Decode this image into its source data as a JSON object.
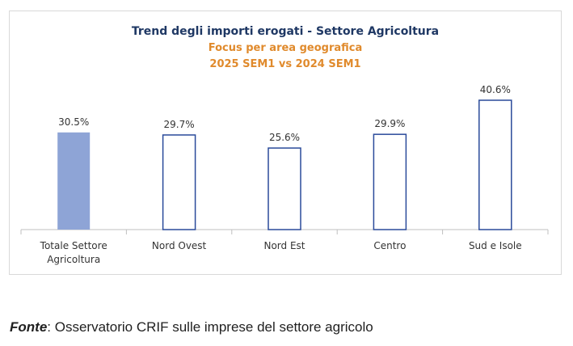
{
  "chart_data": {
    "type": "bar",
    "title": "Trend degli importi erogati - Settore Agricoltura",
    "subtitle": [
      "Focus per area geografica",
      "2025 SEM1 vs 2024 SEM1"
    ],
    "categories": [
      [
        "Totale Settore",
        "Agricoltura"
      ],
      [
        "Nord Ovest"
      ],
      [
        "Nord Est"
      ],
      [
        "Centro"
      ],
      [
        "Sud e Isole"
      ]
    ],
    "values": [
      30.5,
      29.7,
      25.6,
      29.9,
      40.6
    ],
    "value_labels": [
      "30.5%",
      "29.7%",
      "25.6%",
      "29.9%",
      "40.6%"
    ],
    "highlight_index": 0,
    "ylim": [
      0,
      40.6
    ],
    "grid": false,
    "legend": "none",
    "colors": {
      "title": "#1f3864",
      "subtitle": "#e08a2c",
      "highlight_fill": "#8ea4d6",
      "bar_outline": "#2a4a9a",
      "bar_fill": "#ffffff",
      "axis": "#bfbfbf",
      "label_text": "#333333"
    }
  },
  "source": {
    "label": "Fonte",
    "separator": ":",
    "text": " Osservatorio CRIF sulle imprese del settore agricolo"
  }
}
